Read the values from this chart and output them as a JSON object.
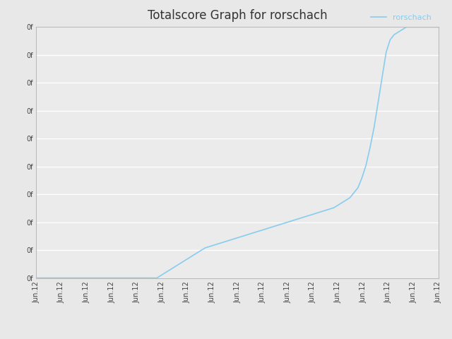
{
  "title": "Totalscore Graph for rorschach",
  "legend_label": "rorschach",
  "line_color": "#88CCEE",
  "background_color": "#e8e8e8",
  "plot_bg_color": "#ebebeb",
  "grid_color": "#ffffff",
  "x_tick_label": "Jun.12",
  "y_tick_label": "0f",
  "num_x_ticks": 17,
  "num_y_ticks": 10,
  "x_data": [
    0,
    1,
    2,
    3,
    4,
    5,
    6,
    7,
    8,
    9,
    10,
    11,
    12,
    13,
    14,
    15,
    16,
    17,
    18,
    19,
    20,
    21,
    22,
    23,
    24,
    25,
    26,
    27,
    28,
    29,
    30,
    31,
    32,
    33,
    34,
    35,
    36,
    37,
    38,
    39,
    40,
    41,
    42,
    43,
    44,
    45,
    46,
    47,
    48,
    49,
    50,
    51,
    52,
    53,
    54,
    55,
    56,
    57,
    58,
    59,
    60,
    61,
    62,
    63,
    64,
    65,
    66,
    67,
    68,
    69,
    70,
    71,
    72,
    73,
    74,
    75,
    76,
    77,
    78,
    79,
    80,
    81,
    82,
    83,
    84,
    85,
    86,
    87,
    88,
    89,
    90,
    91,
    92,
    93,
    94,
    95,
    96,
    97,
    98,
    99,
    100
  ],
  "y_data": [
    0,
    0,
    0,
    0,
    0,
    0,
    0,
    0,
    0,
    0,
    0,
    0,
    0,
    0,
    0,
    0,
    0,
    0,
    0,
    0,
    0,
    0,
    0,
    0,
    0,
    0,
    0,
    0,
    0,
    0,
    0,
    1,
    2,
    3,
    4,
    5,
    6,
    7,
    8,
    9,
    10,
    11,
    12,
    12.5,
    13,
    13.5,
    14,
    14.5,
    15,
    15.5,
    16,
    16.5,
    17,
    17.5,
    18,
    18.5,
    19,
    19.5,
    20,
    20.5,
    21,
    21.5,
    22,
    22.5,
    23,
    23.5,
    24,
    24.5,
    25,
    25.5,
    26,
    26.5,
    27,
    27.5,
    28,
    29,
    30,
    31,
    32,
    34,
    36,
    40,
    45,
    52,
    60,
    70,
    80,
    90,
    95,
    97,
    98,
    99,
    100,
    100,
    100,
    100,
    100,
    100,
    100,
    100,
    100
  ],
  "ylim": [
    0,
    100
  ],
  "xlim": [
    0,
    100
  ],
  "title_fontsize": 12,
  "tick_fontsize": 7,
  "legend_fontsize": 8
}
